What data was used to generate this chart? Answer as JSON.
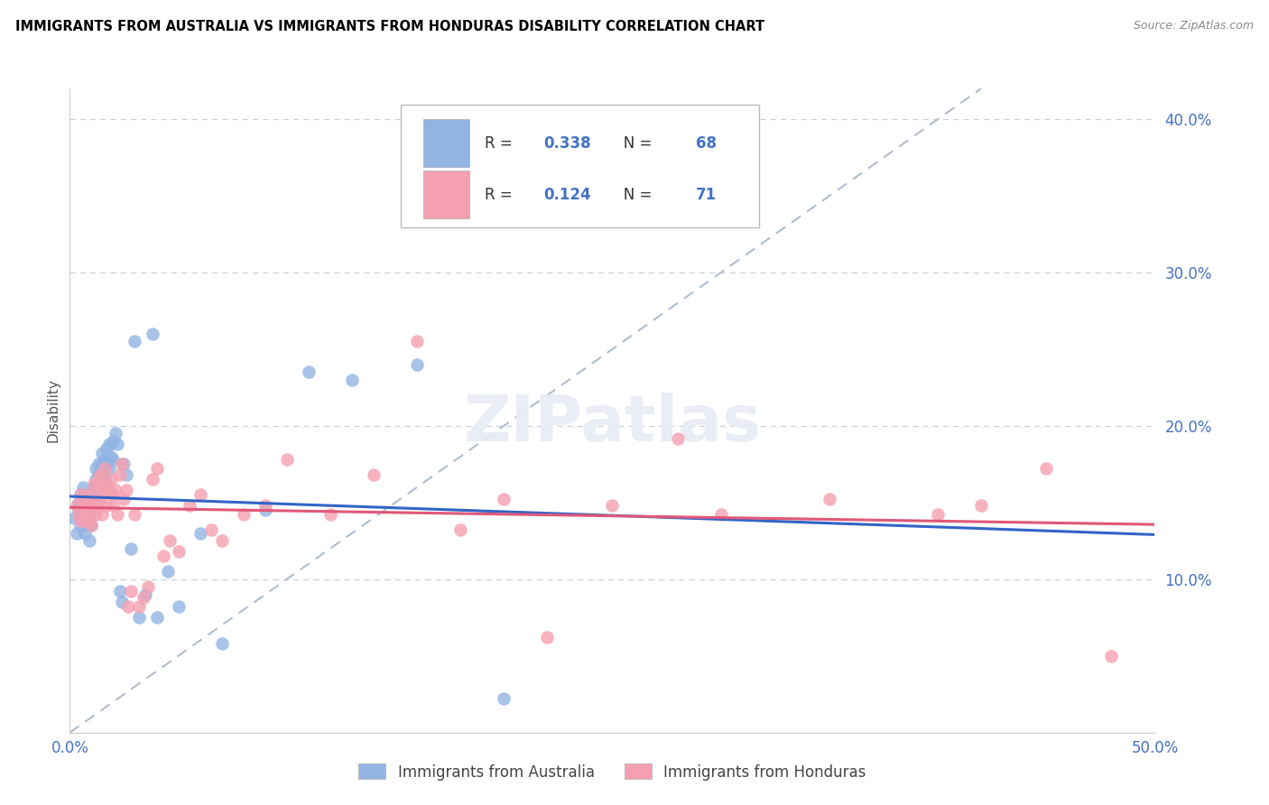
{
  "title": "IMMIGRANTS FROM AUSTRALIA VS IMMIGRANTS FROM HONDURAS DISABILITY CORRELATION CHART",
  "source": "Source: ZipAtlas.com",
  "ylabel": "Disability",
  "xlim": [
    0.0,
    0.5
  ],
  "ylim": [
    0.0,
    0.42
  ],
  "yticks": [
    0.1,
    0.2,
    0.3,
    0.4
  ],
  "ytick_labels": [
    "10.0%",
    "20.0%",
    "30.0%",
    "40.0%"
  ],
  "australia_R": 0.338,
  "australia_N": 68,
  "honduras_R": 0.124,
  "honduras_N": 71,
  "australia_color": "#92b4e3",
  "honduras_color": "#f4a0b0",
  "australia_line_color": "#3264c8",
  "honduras_line_color": "#e05878",
  "diag_line_color": "#b0bcd0",
  "axis_color": "#4472c4",
  "title_color": "#000000",
  "background_color": "#ffffff",
  "australia_scatter_x": [
    0.002,
    0.003,
    0.004,
    0.004,
    0.005,
    0.005,
    0.005,
    0.006,
    0.006,
    0.006,
    0.007,
    0.007,
    0.007,
    0.008,
    0.008,
    0.008,
    0.008,
    0.009,
    0.009,
    0.009,
    0.01,
    0.01,
    0.01,
    0.01,
    0.01,
    0.011,
    0.011,
    0.012,
    0.012,
    0.012,
    0.013,
    0.013,
    0.013,
    0.014,
    0.014,
    0.015,
    0.015,
    0.015,
    0.016,
    0.016,
    0.017,
    0.017,
    0.018,
    0.018,
    0.019,
    0.02,
    0.02,
    0.021,
    0.022,
    0.023,
    0.024,
    0.025,
    0.026,
    0.028,
    0.03,
    0.032,
    0.035,
    0.038,
    0.04,
    0.045,
    0.05,
    0.06,
    0.07,
    0.09,
    0.11,
    0.13,
    0.16,
    0.2
  ],
  "australia_scatter_y": [
    0.14,
    0.13,
    0.15,
    0.145,
    0.135,
    0.148,
    0.155,
    0.16,
    0.142,
    0.138,
    0.145,
    0.138,
    0.13,
    0.15,
    0.145,
    0.155,
    0.135,
    0.148,
    0.142,
    0.125,
    0.15,
    0.145,
    0.135,
    0.148,
    0.155,
    0.16,
    0.148,
    0.165,
    0.158,
    0.172,
    0.175,
    0.168,
    0.158,
    0.17,
    0.162,
    0.182,
    0.175,
    0.168,
    0.178,
    0.165,
    0.185,
    0.175,
    0.188,
    0.172,
    0.18,
    0.19,
    0.178,
    0.195,
    0.188,
    0.092,
    0.085,
    0.175,
    0.168,
    0.12,
    0.255,
    0.075,
    0.09,
    0.26,
    0.075,
    0.105,
    0.082,
    0.13,
    0.058,
    0.145,
    0.235,
    0.23,
    0.24,
    0.022
  ],
  "honduras_scatter_x": [
    0.003,
    0.004,
    0.005,
    0.005,
    0.006,
    0.006,
    0.007,
    0.007,
    0.008,
    0.008,
    0.009,
    0.009,
    0.01,
    0.01,
    0.01,
    0.011,
    0.011,
    0.012,
    0.012,
    0.013,
    0.013,
    0.014,
    0.014,
    0.015,
    0.015,
    0.016,
    0.016,
    0.017,
    0.017,
    0.018,
    0.019,
    0.02,
    0.02,
    0.021,
    0.022,
    0.023,
    0.024,
    0.025,
    0.026,
    0.027,
    0.028,
    0.03,
    0.032,
    0.034,
    0.036,
    0.038,
    0.04,
    0.043,
    0.046,
    0.05,
    0.055,
    0.06,
    0.065,
    0.07,
    0.08,
    0.09,
    0.1,
    0.12,
    0.14,
    0.16,
    0.18,
    0.2,
    0.22,
    0.25,
    0.28,
    0.3,
    0.35,
    0.4,
    0.42,
    0.45,
    0.48
  ],
  "honduras_scatter_y": [
    0.148,
    0.142,
    0.138,
    0.155,
    0.145,
    0.152,
    0.148,
    0.138,
    0.155,
    0.142,
    0.148,
    0.138,
    0.152,
    0.145,
    0.135,
    0.162,
    0.148,
    0.158,
    0.142,
    0.165,
    0.148,
    0.168,
    0.152,
    0.16,
    0.142,
    0.172,
    0.158,
    0.162,
    0.148,
    0.158,
    0.165,
    0.148,
    0.155,
    0.158,
    0.142,
    0.168,
    0.175,
    0.152,
    0.158,
    0.082,
    0.092,
    0.142,
    0.082,
    0.088,
    0.095,
    0.165,
    0.172,
    0.115,
    0.125,
    0.118,
    0.148,
    0.155,
    0.132,
    0.125,
    0.142,
    0.148,
    0.178,
    0.142,
    0.168,
    0.255,
    0.132,
    0.152,
    0.062,
    0.148,
    0.192,
    0.142,
    0.152,
    0.142,
    0.148,
    0.172,
    0.05
  ]
}
